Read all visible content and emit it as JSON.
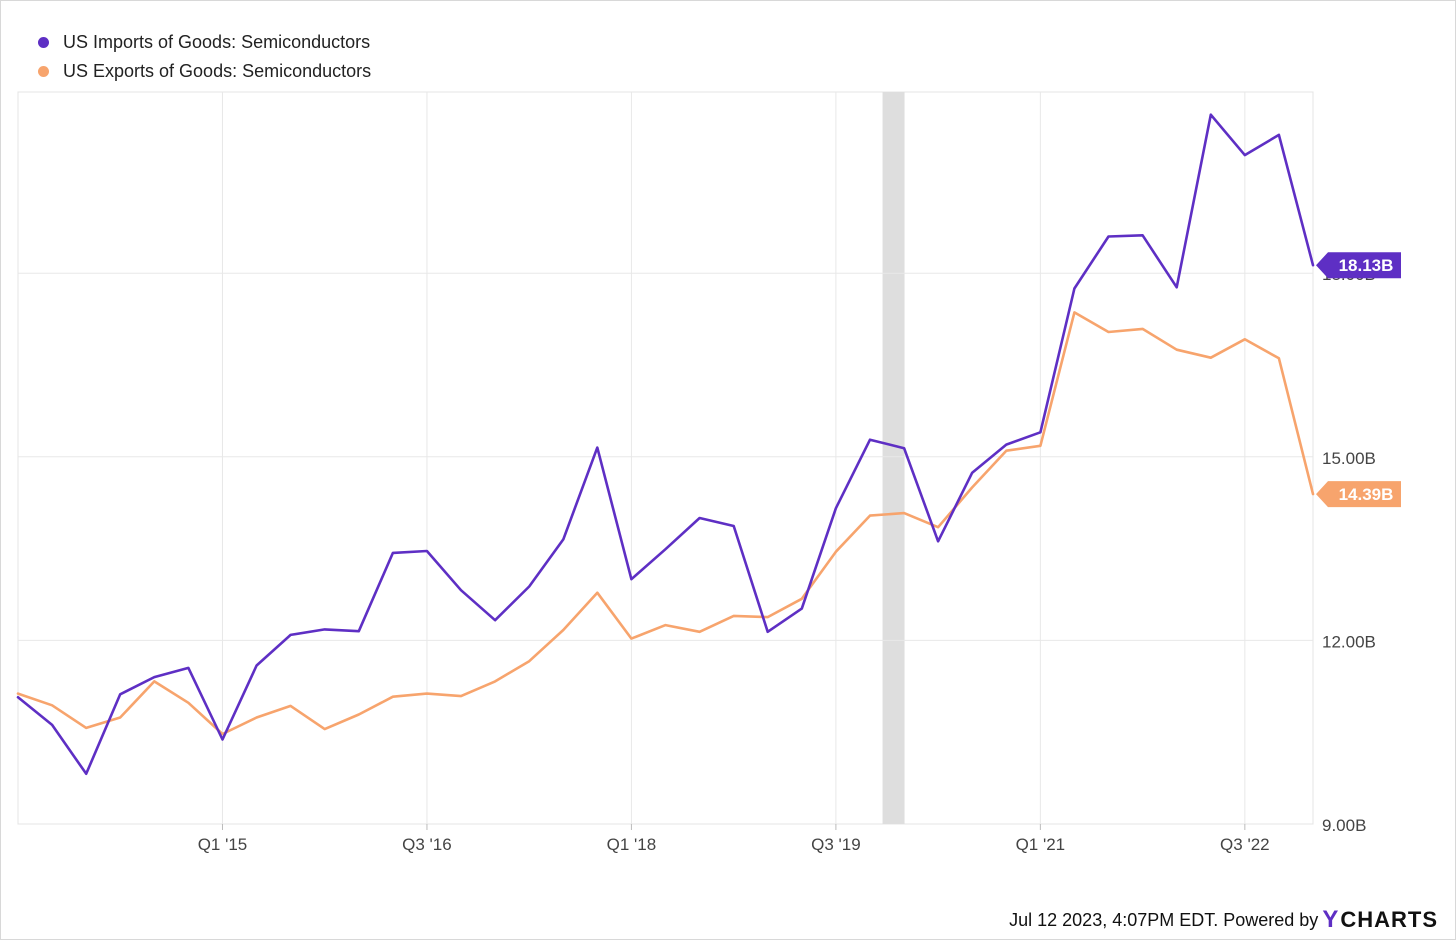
{
  "chart_data": {
    "type": "line",
    "x": [
      "Q3 '13",
      "Q4 '13",
      "Q1 '14",
      "Q2 '14",
      "Q3 '14",
      "Q4 '14",
      "Q1 '15",
      "Q2 '15",
      "Q3 '15",
      "Q4 '15",
      "Q1 '16",
      "Q2 '16",
      "Q3 '16",
      "Q4 '16",
      "Q1 '17",
      "Q2 '17",
      "Q3 '17",
      "Q4 '17",
      "Q1 '18",
      "Q2 '18",
      "Q3 '18",
      "Q4 '18",
      "Q1 '19",
      "Q2 '19",
      "Q3 '19",
      "Q4 '19",
      "Q1 '20",
      "Q2 '20",
      "Q3 '20",
      "Q4 '20",
      "Q1 '21",
      "Q2 '21",
      "Q3 '21",
      "Q4 '21",
      "Q1 '22",
      "Q2 '22",
      "Q3 '22",
      "Q4 '22",
      "Q1 '23"
    ],
    "series": [
      {
        "name": "US Imports of Goods: Semiconductors",
        "color": "#5e2fc4",
        "values": [
          11.07,
          10.62,
          9.82,
          11.12,
          11.4,
          11.55,
          10.38,
          11.59,
          12.09,
          12.18,
          12.15,
          13.43,
          13.46,
          12.82,
          12.33,
          12.88,
          13.65,
          15.15,
          13.0,
          13.49,
          14.0,
          13.87,
          12.14,
          12.52,
          14.16,
          15.28,
          15.14,
          13.62,
          14.74,
          15.2,
          15.4,
          17.75,
          18.6,
          18.62,
          17.77,
          20.59,
          19.93,
          20.26,
          18.13
        ]
      },
      {
        "name": "US Exports of Goods: Semiconductors",
        "color": "#f7a46d",
        "values": [
          11.13,
          10.94,
          10.57,
          10.74,
          11.33,
          10.98,
          10.47,
          10.74,
          10.93,
          10.55,
          10.79,
          11.08,
          11.13,
          11.09,
          11.33,
          11.66,
          12.17,
          12.78,
          12.03,
          12.25,
          12.14,
          12.4,
          12.38,
          12.68,
          13.45,
          14.04,
          14.08,
          13.85,
          14.5,
          15.1,
          15.18,
          17.36,
          17.04,
          17.09,
          16.75,
          16.62,
          16.92,
          16.61,
          14.39
        ]
      }
    ],
    "x_ticks": [
      "Q1 '15",
      "Q3 '16",
      "Q1 '18",
      "Q3 '19",
      "Q1 '21",
      "Q3 '22"
    ],
    "y_ticks": [
      "9.00B",
      "12.00B",
      "15.00B",
      "18.00B"
    ],
    "ylim": [
      9.0,
      21.0
    ],
    "last_value_labels": [
      "18.13B",
      "14.39B"
    ],
    "shaded_period": [
      "Q1 '20"
    ],
    "grid": true,
    "legend_position": "top-left"
  },
  "footer": {
    "timestamp": "Jul 12 2023, 4:07PM EDT.",
    "powered_by": "Powered by",
    "brand": "YCHARTS"
  }
}
